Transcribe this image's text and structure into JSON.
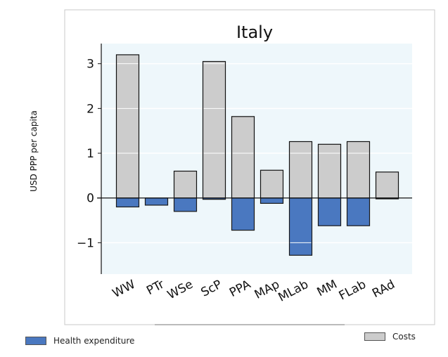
{
  "chart_data": {
    "type": "bar",
    "title": "Italy",
    "xlabel": "",
    "ylabel": "USD PPP per capita",
    "categories": [
      "WW",
      "PTr",
      "WSe",
      "ScP",
      "PPA",
      "MAp",
      "MLab",
      "MM",
      "FLab",
      "RAd"
    ],
    "series": [
      {
        "name": "Costs",
        "values": [
          3.2,
          0.0,
          0.6,
          3.05,
          1.82,
          0.62,
          1.26,
          1.2,
          1.26,
          0.58
        ]
      },
      {
        "name": "Health expenditure",
        "values": [
          -0.2,
          -0.16,
          -0.3,
          -0.03,
          -0.72,
          -0.12,
          -1.28,
          -0.62,
          -0.62,
          -0.02
        ]
      }
    ],
    "yticks": [
      -1,
      0,
      1,
      2,
      3
    ],
    "ylim": [
      -1.7,
      3.45
    ],
    "grid": true,
    "colors": {
      "costs": "#cccccc",
      "health": "#4a78c0",
      "panel": "#eef7fb"
    }
  },
  "legend": {
    "health_label": "Health expenditure",
    "costs_label": "Costs"
  }
}
